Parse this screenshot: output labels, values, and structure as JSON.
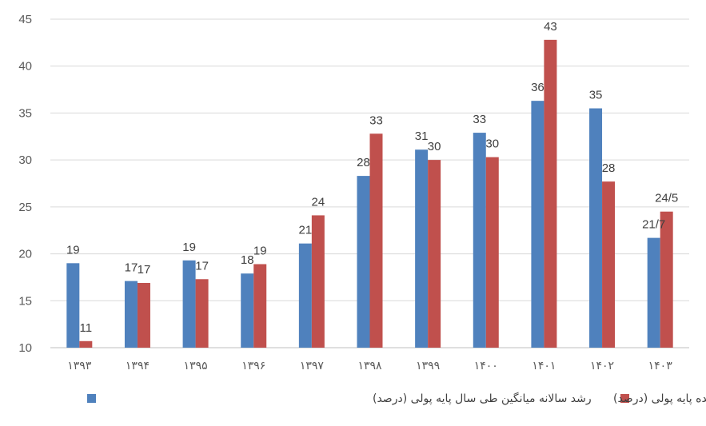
{
  "chart_data": {
    "type": "bar",
    "categories": [
      "۱۳۹۳",
      "۱۳۹۴",
      "۱۳۹۵",
      "۱۳۹۶",
      "۱۳۹۷",
      "۱۳۹۸",
      "۱۳۹۹",
      "۱۴۰۰",
      "۱۴۰۱",
      "۱۴۰۲",
      "۱۴۰۳"
    ],
    "series": [
      {
        "name": "رشد سالانه میانگین طی سال پایه پولی  (درصد)",
        "color": "#4F81BD",
        "values": [
          19,
          17.1,
          19.3,
          17.9,
          21.1,
          28.3,
          31.1,
          32.9,
          36.3,
          35.5,
          21.7
        ],
        "labels": [
          "19",
          "17",
          "19",
          "18",
          "21",
          "28",
          "31",
          "33",
          "36",
          "35",
          "21/7"
        ]
      },
      {
        "name": "رشد سالانه مانده پایه پولی  (درصد)",
        "color": "#C0504D",
        "values": [
          10.7,
          16.9,
          17.3,
          18.9,
          24.1,
          32.8,
          30,
          30.3,
          42.8,
          27.7,
          24.5
        ],
        "labels": [
          "11",
          "17",
          "17",
          "19",
          "24",
          "33",
          "30",
          "30",
          "43",
          "28",
          "24/5"
        ]
      }
    ],
    "ylim": [
      10,
      45
    ],
    "yticks": [
      "10",
      "15",
      "20",
      "25",
      "30",
      "35",
      "40",
      "45"
    ],
    "grid": true,
    "legend": "bottom"
  }
}
